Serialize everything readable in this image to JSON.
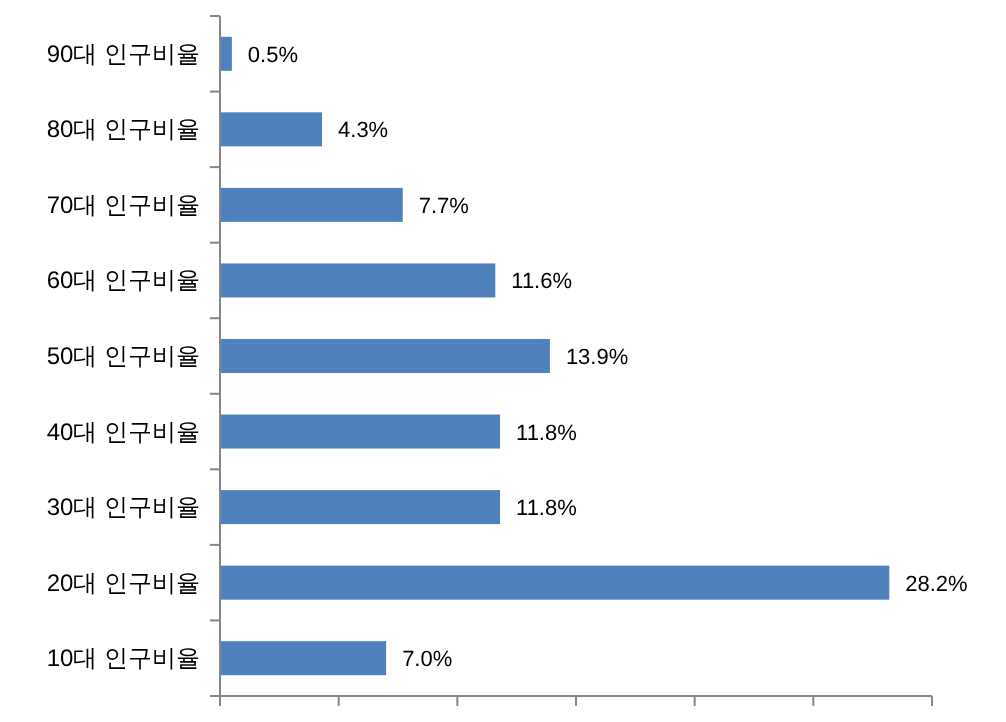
{
  "chart_data": {
    "type": "bar",
    "orientation": "horizontal",
    "categories": [
      "90대 인구비율",
      "80대 인구비율",
      "70대 인구비율",
      "60대 인구비율",
      "50대 인구비율",
      "40대 인구비율",
      "30대 인구비율",
      "20대 인구비율",
      "10대 인구비율"
    ],
    "values": [
      0.5,
      4.3,
      7.7,
      11.6,
      13.9,
      11.8,
      11.8,
      28.2,
      7.0
    ],
    "value_labels": [
      "0.5%",
      "4.3%",
      "7.7%",
      "11.6%",
      "13.9%",
      "11.8%",
      "11.8%",
      "28.2%",
      "7.0%"
    ],
    "color": "#4f81bd",
    "xlim": [
      0,
      30
    ],
    "xticks": [
      {
        "value": 0,
        "label": null
      },
      {
        "value": 5,
        "label": null
      },
      {
        "value": 10,
        "label": null
      },
      {
        "value": 15,
        "label": null
      },
      {
        "value": 20,
        "label": null
      },
      {
        "value": 25,
        "label": null
      },
      {
        "value": 30,
        "label": null
      }
    ],
    "tick_labels": "y",
    "grid": false
  }
}
